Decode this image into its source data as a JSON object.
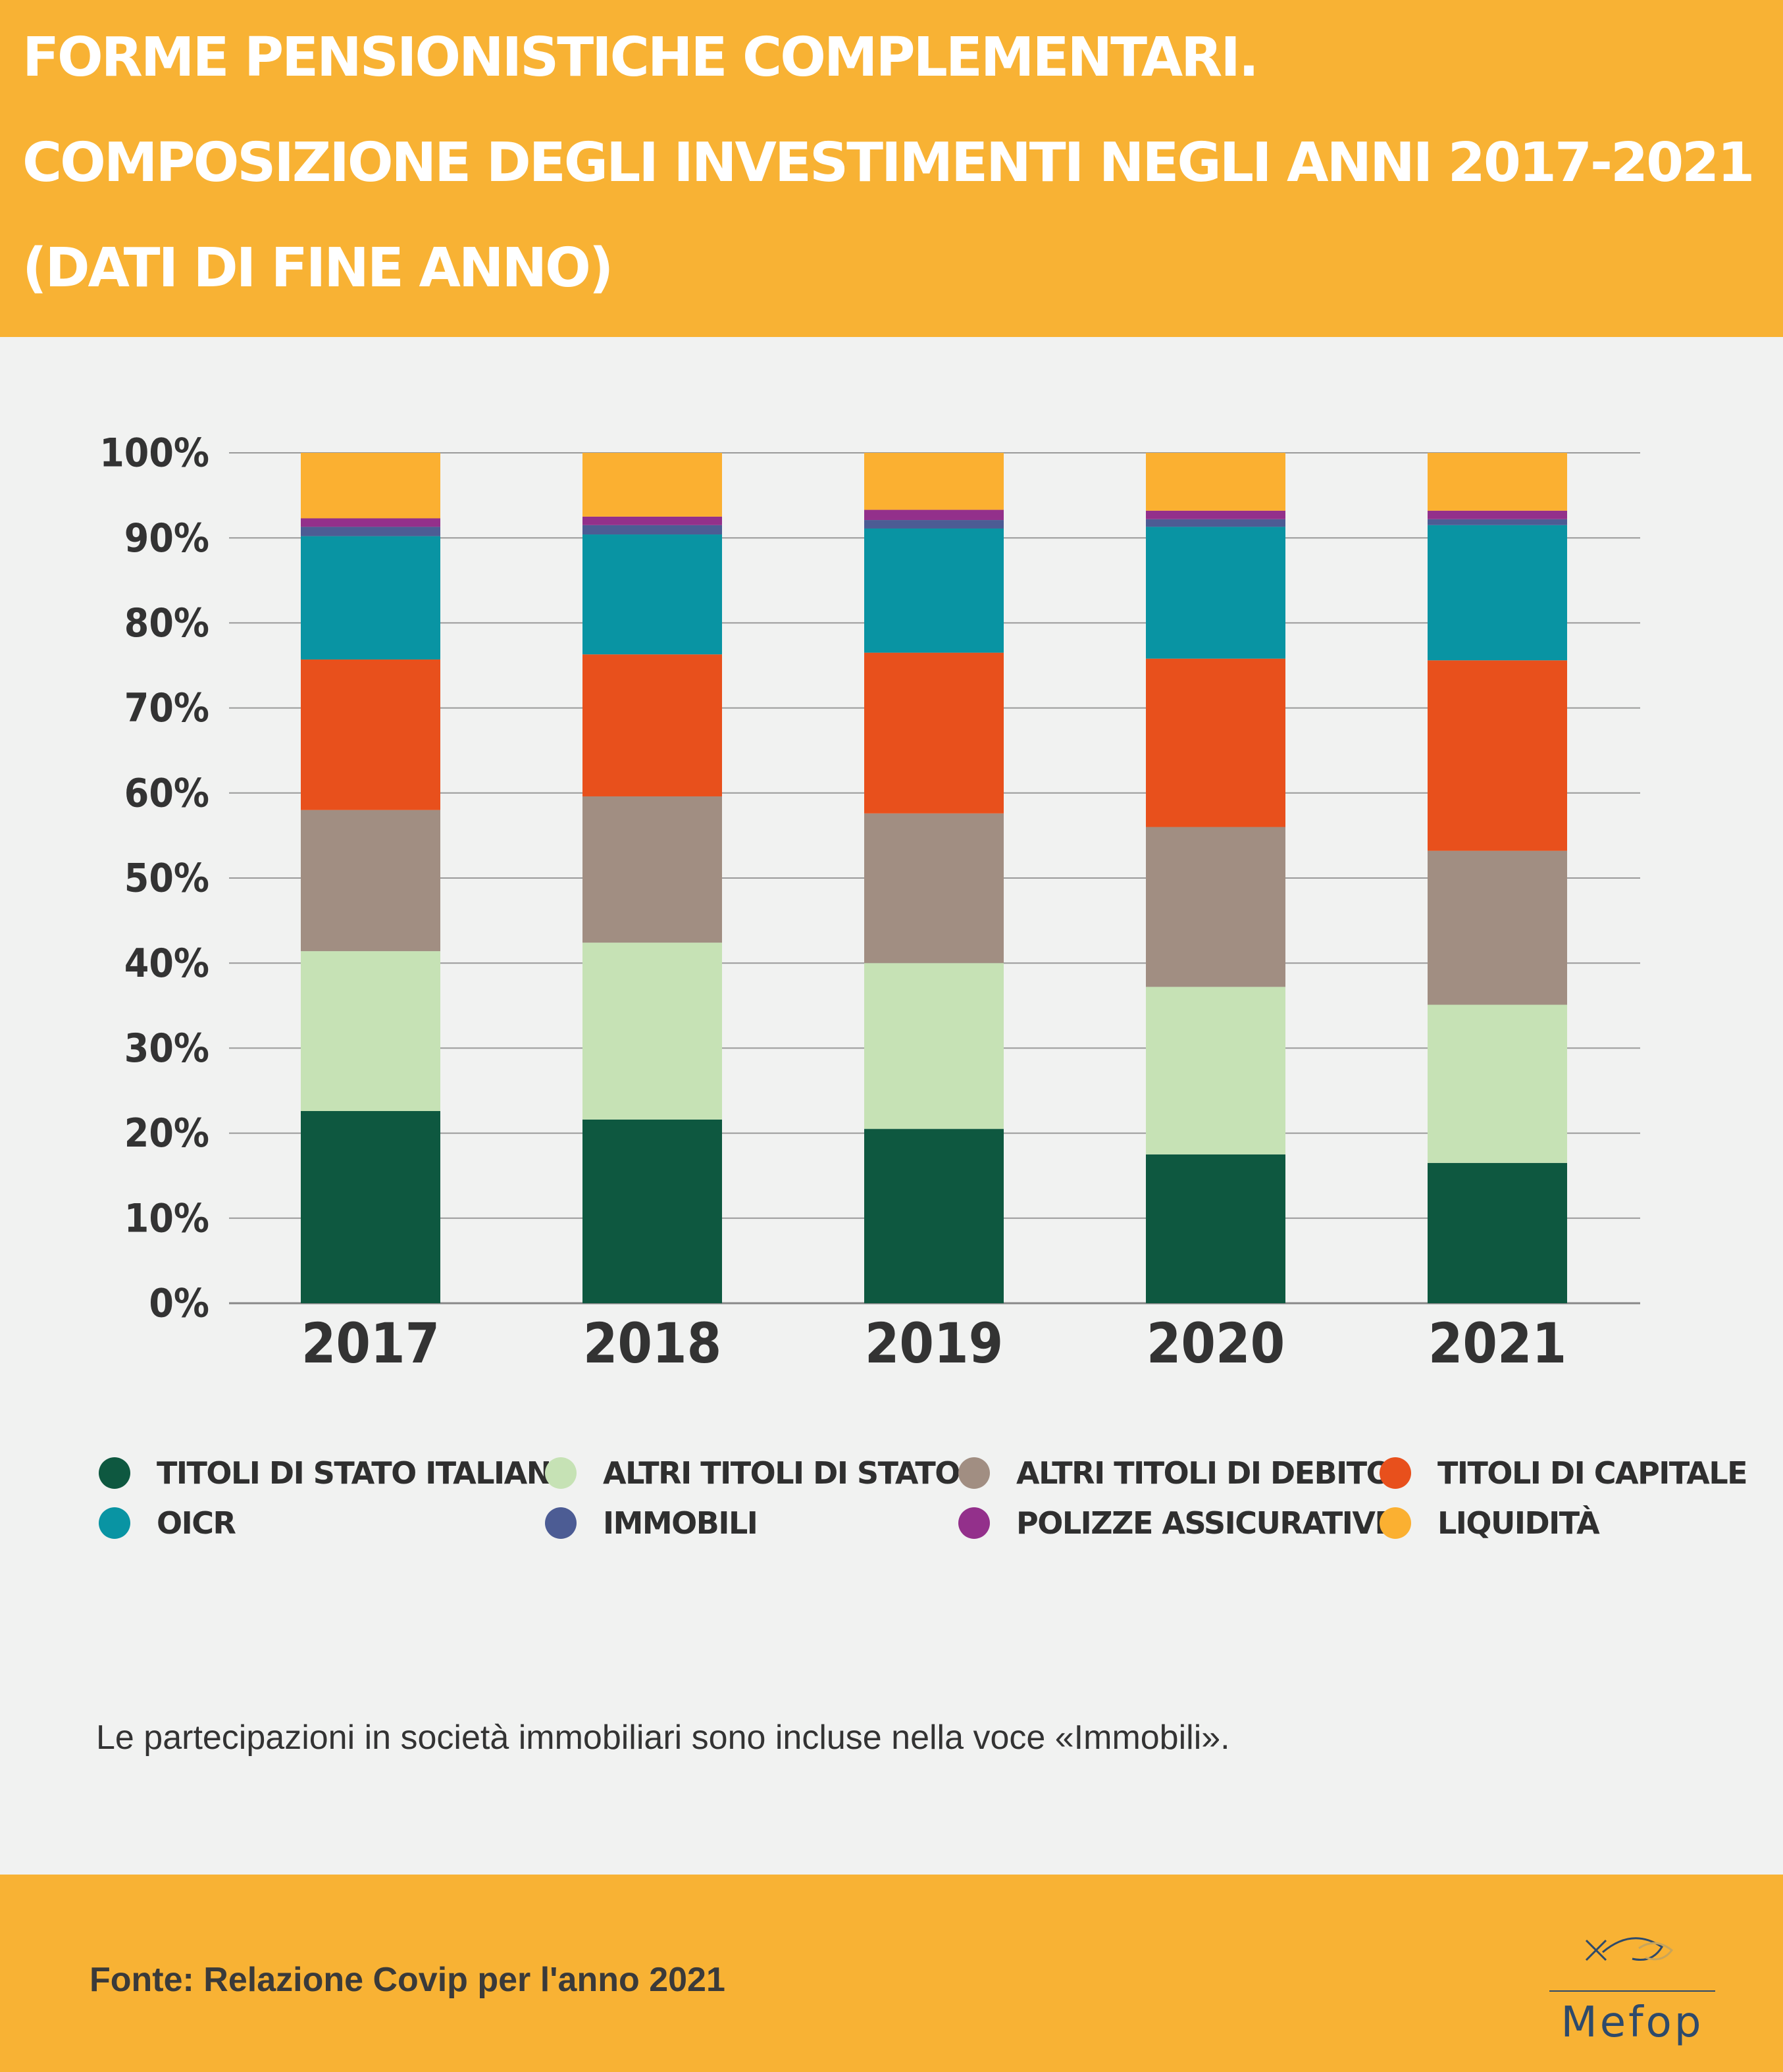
{
  "header": {
    "title_line1": "FORME PENSIONISTICHE COMPLEMENTARI.",
    "title_line2": "COMPOSIZIONE DEGLI INVESTIMENTI NEGLI ANNI 2017-2021",
    "title_line3": "(DATI DI FINE ANNO)",
    "background_color": "#f8b234"
  },
  "chart_data": {
    "type": "bar",
    "stacked": true,
    "percent": true,
    "categories": [
      "2017",
      "2018",
      "2019",
      "2020",
      "2021"
    ],
    "y_ticks": [
      "0%",
      "10%",
      "20%",
      "30%",
      "40%",
      "50%",
      "60%",
      "70%",
      "80%",
      "90%",
      "100%"
    ],
    "ylim": [
      0,
      100
    ],
    "grid": true,
    "legend_position": "bottom",
    "series": [
      {
        "name": "TITOLI DI STATO ITALIANI",
        "color": "#0e5840",
        "values": [
          22.6,
          21.6,
          20.5,
          17.5,
          16.5
        ]
      },
      {
        "name": "ALTRI TITOLI DI STATO",
        "color": "#c6e2b5",
        "values": [
          18.8,
          20.8,
          19.5,
          19.7,
          18.6
        ]
      },
      {
        "name": "ALTRI TITOLI DI DEBITO",
        "color": "#a18e82",
        "values": [
          16.6,
          17.2,
          17.6,
          18.8,
          18.1
        ]
      },
      {
        "name": "TITOLI DI CAPITALE",
        "color": "#e8501c",
        "values": [
          17.7,
          16.7,
          18.9,
          19.8,
          22.4
        ]
      },
      {
        "name": "OICR",
        "color": "#0994a3",
        "values": [
          14.5,
          14.1,
          14.6,
          15.5,
          15.9
        ]
      },
      {
        "name": "IMMOBILI",
        "color": "#4c5c94",
        "values": [
          1.1,
          1.1,
          1.0,
          0.9,
          0.7
        ]
      },
      {
        "name": "POLIZZE ASSICURATIVE",
        "color": "#93308b",
        "values": [
          1.0,
          1.0,
          1.2,
          1.0,
          1.0
        ]
      },
      {
        "name": "LIQUIDITÀ",
        "color": "#fbb031",
        "values": [
          7.7,
          7.5,
          6.7,
          6.8,
          6.8
        ]
      }
    ]
  },
  "note": "Le partecipazioni in società immobiliari sono incluse nella voce «Immobili».",
  "footer": {
    "source": "Fonte: Relazione Covip per l'anno 2021",
    "logo_text": "Mefop",
    "background_color": "#f8b234"
  }
}
